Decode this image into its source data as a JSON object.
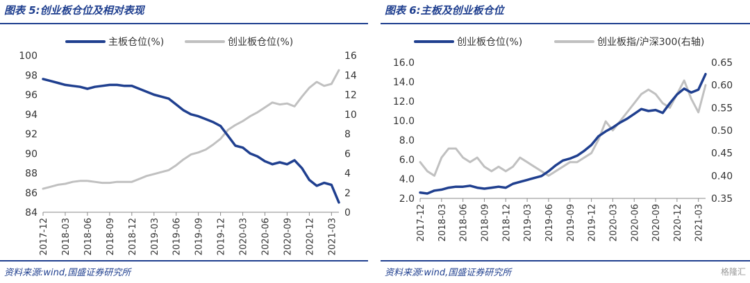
{
  "left": {
    "title": "图表 5:创业板仓位及相对表现",
    "source": "资料来源:wind,国盛证券研究所"
  },
  "right": {
    "title": "图表 6:主板及创业板仓位",
    "source": "资料来源:wind,国盛证券研究所",
    "watermark": "格隆汇"
  },
  "colors": {
    "primary": "#1f3f8f",
    "secondary": "#c0c0c0"
  },
  "chart_data": [
    {
      "type": "line",
      "legend_placement": "top",
      "x_ticks": [
        "2017-12",
        "2018-03",
        "2018-06",
        "2018-09",
        "2018-12",
        "2019-03",
        "2019-06",
        "2019-09",
        "2019-12",
        "2020-03",
        "2020-06",
        "2020-09",
        "2020-12",
        "2021-03"
      ],
      "y_left": {
        "ticks": [
          "100",
          "98",
          "96",
          "94",
          "92",
          "90",
          "88",
          "86",
          "84"
        ],
        "range": [
          84,
          100
        ]
      },
      "y_right": {
        "ticks": [
          "16",
          "14",
          "12",
          "10",
          "8",
          "6",
          "4",
          "2",
          "0"
        ],
        "range": [
          0,
          16
        ]
      },
      "series": [
        {
          "name": "主板仓位(%)",
          "axis": "left",
          "color": "#1f3f8f",
          "values": [
            [
              "2017-12",
              97.6
            ],
            [
              "2018-01",
              97.4
            ],
            [
              "2018-02",
              97.2
            ],
            [
              "2018-03",
              97.0
            ],
            [
              "2018-04",
              96.9
            ],
            [
              "2018-05",
              96.8
            ],
            [
              "2018-06",
              96.6
            ],
            [
              "2018-07",
              96.8
            ],
            [
              "2018-08",
              96.9
            ],
            [
              "2018-09",
              97.0
            ],
            [
              "2018-10",
              97.0
            ],
            [
              "2018-11",
              96.9
            ],
            [
              "2018-12",
              96.9
            ],
            [
              "2019-01",
              96.6
            ],
            [
              "2019-02",
              96.3
            ],
            [
              "2019-03",
              96.0
            ],
            [
              "2019-04",
              95.8
            ],
            [
              "2019-05",
              95.6
            ],
            [
              "2019-06",
              95.0
            ],
            [
              "2019-07",
              94.4
            ],
            [
              "2019-08",
              94.0
            ],
            [
              "2019-09",
              93.8
            ],
            [
              "2019-10",
              93.5
            ],
            [
              "2019-11",
              93.2
            ],
            [
              "2019-12",
              92.8
            ],
            [
              "2020-01",
              91.8
            ],
            [
              "2020-02",
              90.8
            ],
            [
              "2020-03",
              90.6
            ],
            [
              "2020-04",
              90.0
            ],
            [
              "2020-05",
              89.7
            ],
            [
              "2020-06",
              89.2
            ],
            [
              "2020-07",
              88.9
            ],
            [
              "2020-08",
              89.1
            ],
            [
              "2020-09",
              88.9
            ],
            [
              "2020-10",
              89.3
            ],
            [
              "2020-11",
              88.5
            ],
            [
              "2020-12",
              87.3
            ],
            [
              "2021-01",
              86.7
            ],
            [
              "2021-02",
              87.0
            ],
            [
              "2021-03",
              86.8
            ],
            [
              "2021-04",
              85.0
            ]
          ]
        },
        {
          "name": "创业板仓位(%)",
          "axis": "right",
          "color": "#c0c0c0",
          "values": [
            [
              "2017-12",
              2.4
            ],
            [
              "2018-01",
              2.6
            ],
            [
              "2018-02",
              2.8
            ],
            [
              "2018-03",
              2.9
            ],
            [
              "2018-04",
              3.1
            ],
            [
              "2018-05",
              3.2
            ],
            [
              "2018-06",
              3.2
            ],
            [
              "2018-07",
              3.1
            ],
            [
              "2018-08",
              3.0
            ],
            [
              "2018-09",
              3.0
            ],
            [
              "2018-10",
              3.1
            ],
            [
              "2018-11",
              3.1
            ],
            [
              "2018-12",
              3.1
            ],
            [
              "2019-01",
              3.4
            ],
            [
              "2019-02",
              3.7
            ],
            [
              "2019-03",
              3.9
            ],
            [
              "2019-04",
              4.1
            ],
            [
              "2019-05",
              4.3
            ],
            [
              "2019-06",
              4.8
            ],
            [
              "2019-07",
              5.4
            ],
            [
              "2019-08",
              5.9
            ],
            [
              "2019-09",
              6.1
            ],
            [
              "2019-10",
              6.4
            ],
            [
              "2019-11",
              6.9
            ],
            [
              "2019-12",
              7.5
            ],
            [
              "2020-01",
              8.4
            ],
            [
              "2020-02",
              8.9
            ],
            [
              "2020-03",
              9.3
            ],
            [
              "2020-04",
              9.8
            ],
            [
              "2020-05",
              10.2
            ],
            [
              "2020-06",
              10.7
            ],
            [
              "2020-07",
              11.2
            ],
            [
              "2020-08",
              11.0
            ],
            [
              "2020-09",
              11.1
            ],
            [
              "2020-10",
              10.8
            ],
            [
              "2020-11",
              11.8
            ],
            [
              "2020-12",
              12.7
            ],
            [
              "2021-01",
              13.3
            ],
            [
              "2021-02",
              12.9
            ],
            [
              "2021-03",
              13.1
            ],
            [
              "2021-04",
              14.5
            ]
          ]
        }
      ]
    },
    {
      "type": "line",
      "legend_placement": "top",
      "x_ticks": [
        "2017-12",
        "2018-03",
        "2018-06",
        "2018-09",
        "2018-12",
        "2019-03",
        "2019-06",
        "2019-09",
        "2019-12",
        "2020-03",
        "2020-06",
        "2020-09",
        "2020-12",
        "2021-03"
      ],
      "y_left": {
        "ticks": [
          "16.0",
          "14.0",
          "12.0",
          "10.0",
          "8.0",
          "6.0",
          "4.0",
          "2.0"
        ],
        "range": [
          2,
          16
        ]
      },
      "y_right": {
        "ticks": [
          "0.65",
          "0.60",
          "0.55",
          "0.50",
          "0.45",
          "0.40",
          "0.35"
        ],
        "range": [
          0.35,
          0.65
        ]
      },
      "series": [
        {
          "name": "创业板仓位(%)",
          "axis": "left",
          "color": "#1f3f8f",
          "values": [
            [
              "2017-12",
              2.6
            ],
            [
              "2018-01",
              2.5
            ],
            [
              "2018-02",
              2.8
            ],
            [
              "2018-03",
              2.9
            ],
            [
              "2018-04",
              3.1
            ],
            [
              "2018-05",
              3.2
            ],
            [
              "2018-06",
              3.2
            ],
            [
              "2018-07",
              3.3
            ],
            [
              "2018-08",
              3.1
            ],
            [
              "2018-09",
              3.0
            ],
            [
              "2018-10",
              3.1
            ],
            [
              "2018-11",
              3.2
            ],
            [
              "2018-12",
              3.1
            ],
            [
              "2019-01",
              3.5
            ],
            [
              "2019-02",
              3.7
            ],
            [
              "2019-03",
              3.9
            ],
            [
              "2019-04",
              4.1
            ],
            [
              "2019-05",
              4.3
            ],
            [
              "2019-06",
              4.8
            ],
            [
              "2019-07",
              5.4
            ],
            [
              "2019-08",
              5.9
            ],
            [
              "2019-09",
              6.1
            ],
            [
              "2019-10",
              6.4
            ],
            [
              "2019-11",
              6.9
            ],
            [
              "2019-12",
              7.5
            ],
            [
              "2020-01",
              8.4
            ],
            [
              "2020-02",
              8.9
            ],
            [
              "2020-03",
              9.3
            ],
            [
              "2020-04",
              9.8
            ],
            [
              "2020-05",
              10.2
            ],
            [
              "2020-06",
              10.7
            ],
            [
              "2020-07",
              11.2
            ],
            [
              "2020-08",
              11.0
            ],
            [
              "2020-09",
              11.1
            ],
            [
              "2020-10",
              10.8
            ],
            [
              "2020-11",
              11.8
            ],
            [
              "2020-12",
              12.7
            ],
            [
              "2021-01",
              13.3
            ],
            [
              "2021-02",
              12.9
            ],
            [
              "2021-03",
              13.2
            ],
            [
              "2021-04",
              14.8
            ]
          ]
        },
        {
          "name": "创业板指/沪深300(右轴)",
          "axis": "right",
          "color": "#c0c0c0",
          "values": [
            [
              "2017-12",
              0.43
            ],
            [
              "2018-01",
              0.41
            ],
            [
              "2018-02",
              0.4
            ],
            [
              "2018-03",
              0.44
            ],
            [
              "2018-04",
              0.46
            ],
            [
              "2018-05",
              0.46
            ],
            [
              "2018-06",
              0.44
            ],
            [
              "2018-07",
              0.43
            ],
            [
              "2018-08",
              0.44
            ],
            [
              "2018-09",
              0.42
            ],
            [
              "2018-10",
              0.41
            ],
            [
              "2018-11",
              0.42
            ],
            [
              "2018-12",
              0.41
            ],
            [
              "2019-01",
              0.42
            ],
            [
              "2019-02",
              0.44
            ],
            [
              "2019-03",
              0.43
            ],
            [
              "2019-04",
              0.42
            ],
            [
              "2019-05",
              0.41
            ],
            [
              "2019-06",
              0.4
            ],
            [
              "2019-07",
              0.41
            ],
            [
              "2019-08",
              0.42
            ],
            [
              "2019-09",
              0.43
            ],
            [
              "2019-10",
              0.43
            ],
            [
              "2019-11",
              0.44
            ],
            [
              "2019-12",
              0.45
            ],
            [
              "2020-01",
              0.48
            ],
            [
              "2020-02",
              0.52
            ],
            [
              "2020-03",
              0.5
            ],
            [
              "2020-04",
              0.52
            ],
            [
              "2020-05",
              0.54
            ],
            [
              "2020-06",
              0.56
            ],
            [
              "2020-07",
              0.58
            ],
            [
              "2020-08",
              0.59
            ],
            [
              "2020-09",
              0.58
            ],
            [
              "2020-10",
              0.56
            ],
            [
              "2020-11",
              0.55
            ],
            [
              "2020-12",
              0.58
            ],
            [
              "2021-01",
              0.61
            ],
            [
              "2021-02",
              0.57
            ],
            [
              "2021-03",
              0.54
            ],
            [
              "2021-04",
              0.6
            ]
          ]
        }
      ]
    }
  ]
}
